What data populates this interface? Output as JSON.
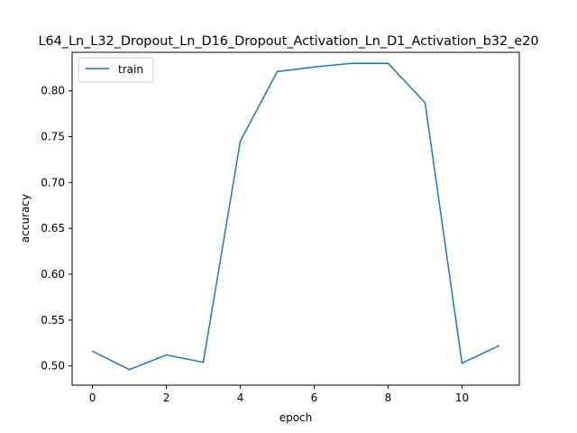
{
  "chart_data": {
    "type": "line",
    "title": "L64_Ln_L32_Dropout_Ln_D16_Dropout_Activation_Ln_D1_Activation_b32_e20",
    "xlabel": "epoch",
    "ylabel": "accuracy",
    "xlim": [
      -0.55,
      11.55
    ],
    "ylim": [
      0.479,
      0.842
    ],
    "xticks": [
      0,
      2,
      4,
      6,
      8,
      10
    ],
    "yticks": [
      0.5,
      0.55,
      0.6,
      0.65,
      0.7,
      0.75,
      0.8
    ],
    "xtick_labels": [
      "0",
      "2",
      "4",
      "6",
      "8",
      "10"
    ],
    "ytick_labels": [
      "0.50",
      "0.55",
      "0.60",
      "0.65",
      "0.70",
      "0.75",
      "0.80"
    ],
    "legend_position": "top-left",
    "grid": false,
    "series": [
      {
        "name": "train",
        "color": "#1f77b4",
        "x": [
          0,
          1,
          2,
          3,
          4,
          5,
          6,
          7,
          8,
          9,
          10,
          11
        ],
        "y": [
          0.516,
          0.496,
          0.512,
          0.504,
          0.745,
          0.821,
          0.826,
          0.83,
          0.83,
          0.787,
          0.503,
          0.522
        ]
      }
    ]
  }
}
